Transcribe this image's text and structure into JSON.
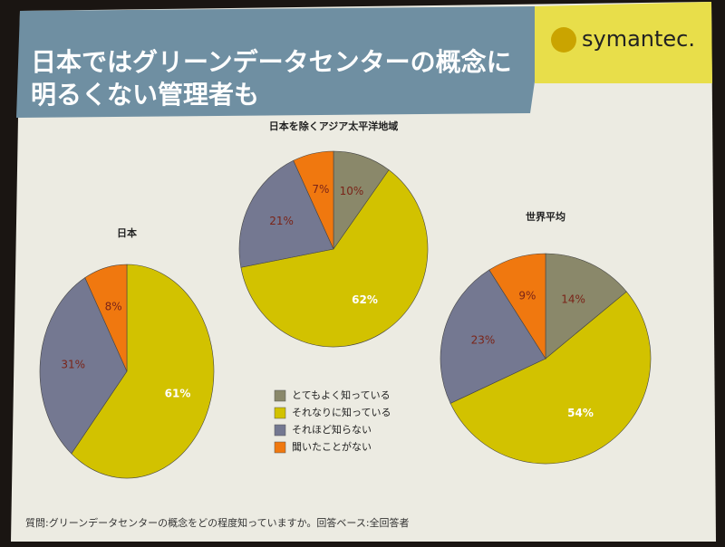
{
  "slide": {
    "title_lines": [
      "日本ではグリーンデータセンターの概念に",
      "明るくない管理者も"
    ],
    "logo": "symantec.",
    "footnote": "質問:グリーンデータセンターの概念をどの程度知っていますか。回答ベース:全回答者"
  },
  "chart_data": [
    {
      "type": "pie",
      "title": "日本",
      "categories": [
        "それなりに知っている",
        "それほど知らない",
        "聞いたことがない"
      ],
      "values": [
        61,
        31,
        8
      ],
      "value_labels": [
        "61%",
        "31%",
        "8%"
      ],
      "colors": [
        "#d2c200",
        "#747891",
        "#f0780f"
      ]
    },
    {
      "type": "pie",
      "title": "日本を除くアジア太平洋地域",
      "categories": [
        "とてもよく知っている",
        "それなりに知っている",
        "それほど知らない",
        "聞いたことがない"
      ],
      "values": [
        10,
        62,
        21,
        7
      ],
      "value_labels": [
        "10%",
        "62%",
        "21%",
        "7%"
      ],
      "colors": [
        "#8a886a",
        "#d2c200",
        "#747891",
        "#f0780f"
      ]
    },
    {
      "type": "pie",
      "title": "世界平均",
      "categories": [
        "とてもよく知っている",
        "それなりに知っている",
        "それほど知らない",
        "聞いたことがない"
      ],
      "values": [
        14,
        54,
        23,
        9
      ],
      "value_labels": [
        "14%",
        "54%",
        "23%",
        "9%"
      ],
      "colors": [
        "#8a886a",
        "#d2c200",
        "#747891",
        "#f0780f"
      ]
    }
  ]
}
